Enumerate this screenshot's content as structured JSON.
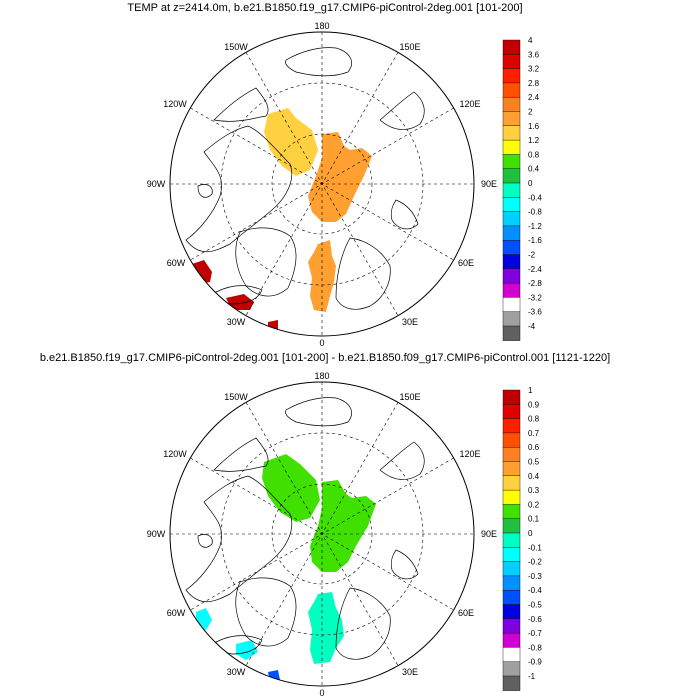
{
  "panels": [
    {
      "title": "TEMP at z=2414.0m, b.e21.B1850.f19_g17.CMIP6-piControl-2deg.001 [101-200]",
      "lon_labels": {
        "top": "180",
        "top_left": "150W",
        "top_right": "150E",
        "upper_left": "120W",
        "upper_right": "120E",
        "left": "90W",
        "right": "90E",
        "lower_left": "60W",
        "lower_right": "60E",
        "bottom_left": "30W",
        "bottom_right": "30E",
        "bottom": "0"
      },
      "colorbar": {
        "labels": [
          "4",
          "3.6",
          "3.2",
          "2.8",
          "2.4",
          "2",
          "1.6",
          "1.2",
          "0.8",
          "0.4",
          "0",
          "-0.4",
          "-0.8",
          "-1.2",
          "-1.6",
          "-2",
          "-2.4",
          "-2.8",
          "-3.2",
          "-3.6",
          "-4"
        ],
        "colors": [
          "#c00000",
          "#e00000",
          "#ff2000",
          "#ff5000",
          "#ff8020",
          "#ffa030",
          "#ffd040",
          "#ffff00",
          "#40e000",
          "#20c040",
          "#00ffc0",
          "#00ffff",
          "#00d0ff",
          "#0090ff",
          "#0050ff",
          "#0000e0",
          "#8000e0",
          "#d000d0",
          "#ffffff",
          "#a0a0a0",
          "#606060"
        ]
      },
      "fields": [
        {
          "name": "east-siberian-patch",
          "color": "#ffd040"
        },
        {
          "name": "central-arctic-patch",
          "color": "#ffa030"
        },
        {
          "name": "atlantic-side-patch",
          "color": "#ffa030"
        },
        {
          "name": "labrador-patch",
          "color": "#c00000"
        },
        {
          "name": "greenland-south-patch",
          "color": "#c00000"
        }
      ]
    },
    {
      "title": "b.e21.B1850.f19_g17.CMIP6-piControl-2deg.001 [101-200] - b.e21.B1850.f09_g17.CMIP6-piControl.001 [1121-1220]",
      "lon_labels": {
        "top": "180",
        "top_left": "150W",
        "top_right": "150E",
        "upper_left": "120W",
        "upper_right": "120E",
        "left": "90W",
        "right": "90E",
        "lower_left": "60W",
        "lower_right": "60E",
        "bottom_left": "30W",
        "bottom_right": "30E",
        "bottom": "0"
      },
      "colorbar": {
        "labels": [
          "1",
          "0.9",
          "0.8",
          "0.7",
          "0.6",
          "0.5",
          "0.4",
          "0.3",
          "0.2",
          "0.1",
          "0",
          "-0.1",
          "-0.2",
          "-0.3",
          "-0.4",
          "-0.5",
          "-0.6",
          "-0.7",
          "-0.8",
          "-0.9",
          "-1"
        ],
        "colors": [
          "#c00000",
          "#e00000",
          "#ff2000",
          "#ff5000",
          "#ff8020",
          "#ffa030",
          "#ffd040",
          "#ffff00",
          "#40e000",
          "#20c040",
          "#00ffc0",
          "#00ffff",
          "#00d0ff",
          "#0090ff",
          "#0050ff",
          "#0000e0",
          "#8000e0",
          "#d000d0",
          "#ffffff",
          "#a0a0a0",
          "#606060"
        ]
      },
      "fields": [
        {
          "name": "east-siberian-patch",
          "color": "#40e000"
        },
        {
          "name": "central-arctic-patch",
          "color": "#40e000"
        },
        {
          "name": "atlantic-side-patch",
          "color": "#00ffc0"
        },
        {
          "name": "labrador-patch",
          "color": "#00ffff"
        },
        {
          "name": "greenland-south-patch",
          "color": "#0050ff"
        }
      ]
    }
  ]
}
